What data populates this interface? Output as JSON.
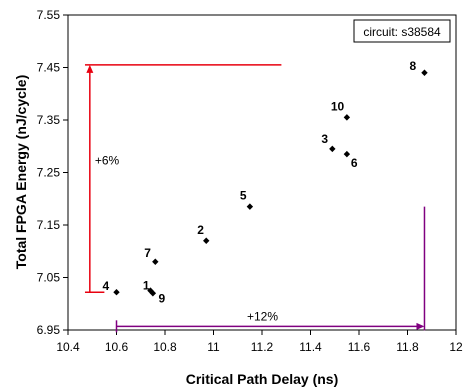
{
  "chart_data": {
    "type": "scatter",
    "title": "",
    "xlabel": "Critical Path Delay (ns)",
    "ylabel": "Total FPGA Energy (nJ/cycle)",
    "xlim": [
      10.4,
      12
    ],
    "ylim": [
      6.95,
      7.55
    ],
    "xticks": [
      "10.4",
      "10.6",
      "10.8",
      "11",
      "11.2",
      "11.4",
      "11.6",
      "11.8",
      "12"
    ],
    "yticks": [
      "6.95",
      "7.05",
      "7.15",
      "7.25",
      "7.35",
      "7.45",
      "7.55"
    ],
    "grid": false,
    "legend_box": "circuit: s38584",
    "points": [
      {
        "label": "1",
        "x": 10.75,
        "y": 7.02
      },
      {
        "label": "2",
        "x": 10.97,
        "y": 7.12
      },
      {
        "label": "3",
        "x": 11.49,
        "y": 7.295
      },
      {
        "label": "4",
        "x": 10.6,
        "y": 7.022
      },
      {
        "label": "5",
        "x": 11.15,
        "y": 7.185
      },
      {
        "label": "6",
        "x": 11.55,
        "y": 7.285
      },
      {
        "label": "7",
        "x": 10.76,
        "y": 7.08
      },
      {
        "label": "8",
        "x": 11.87,
        "y": 7.44
      },
      {
        "label": "9",
        "x": 10.74,
        "y": 7.025
      },
      {
        "label": "10",
        "x": 11.55,
        "y": 7.355
      }
    ],
    "annotations": [
      {
        "label": "+6%",
        "color": "#e8000f",
        "orientation": "vertical",
        "from": 7.022,
        "to": 7.455
      },
      {
        "label": "+12%",
        "color": "#800080",
        "orientation": "horizontal",
        "from": 10.6,
        "to": 11.87
      }
    ]
  }
}
